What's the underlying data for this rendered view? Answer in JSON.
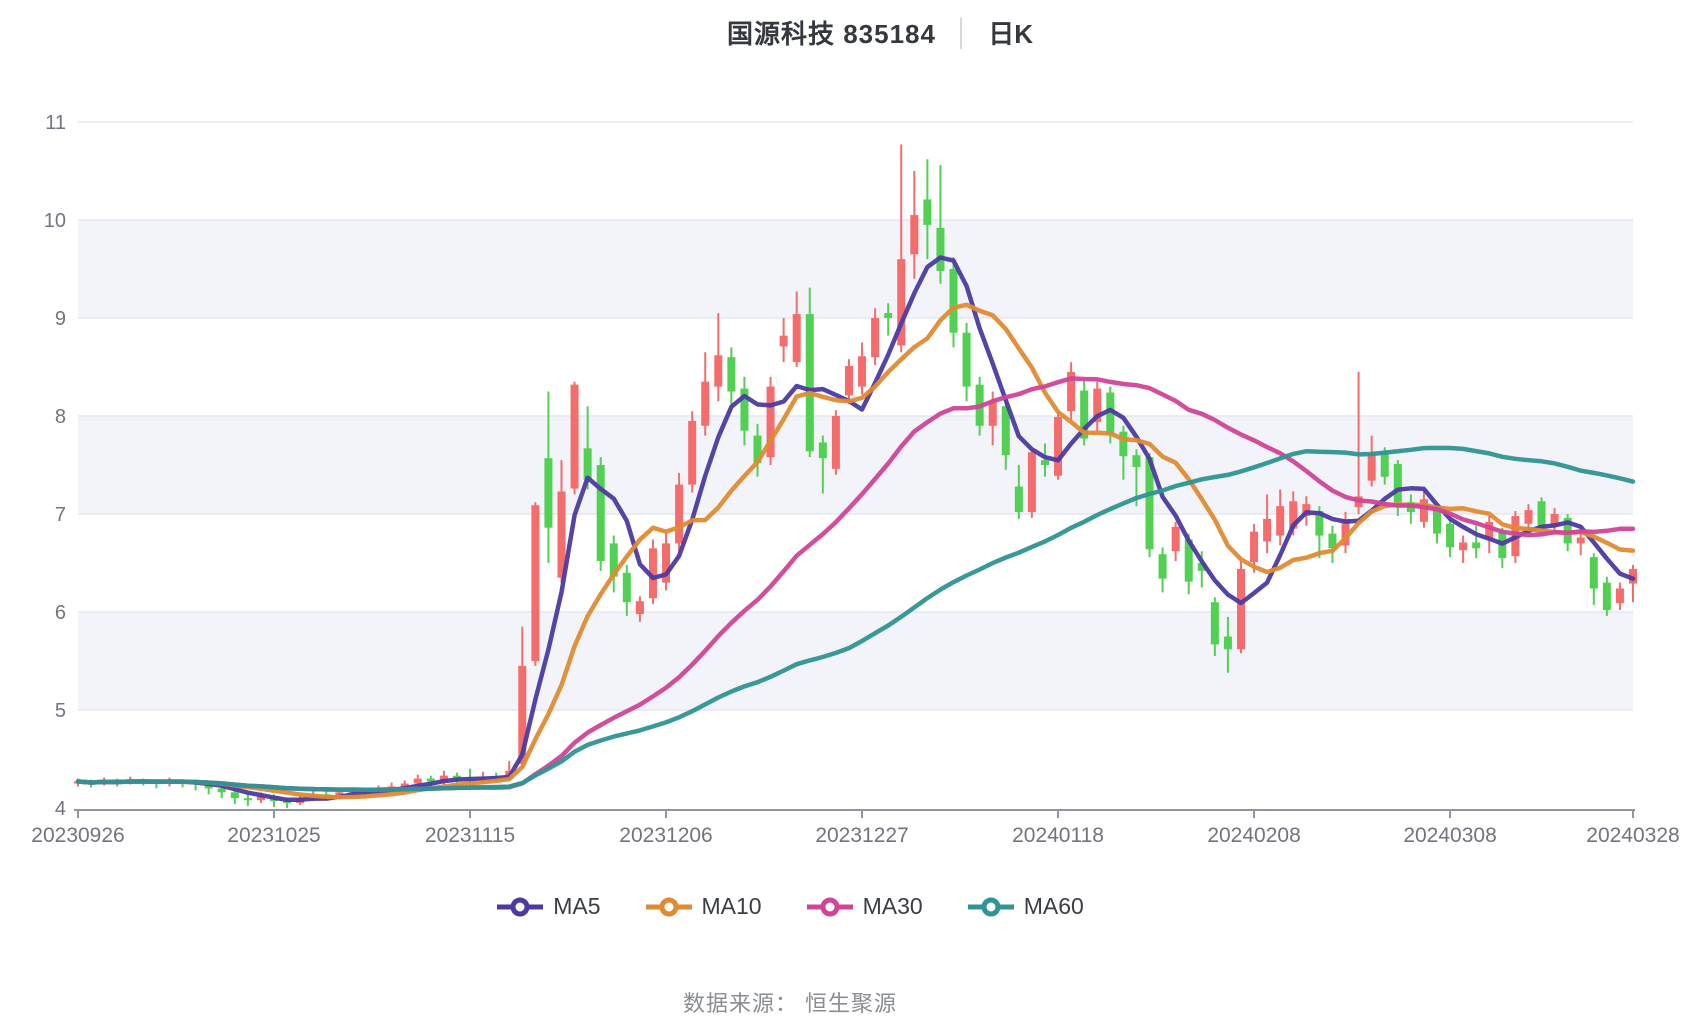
{
  "title": {
    "main": "国源科技 835184",
    "separator": "│",
    "sub": "日K"
  },
  "footer": {
    "text": "数据来源： 恒生聚源"
  },
  "chart_data": {
    "type": "candlestick",
    "title": "国源科技 835184 日K",
    "xlabel": "",
    "ylabel": "",
    "x_tick_labels": [
      "20230926",
      "20231025",
      "20231115",
      "20231206",
      "20231227",
      "20240118",
      "20240208",
      "20240308",
      "20240328"
    ],
    "x_tick_indices": [
      0,
      15,
      30,
      45,
      60,
      75,
      90,
      105,
      119
    ],
    "num_points": 120,
    "y_axis": {
      "min": 4,
      "max": 11,
      "ticks": [
        4,
        5,
        6,
        7,
        8,
        9,
        10,
        11
      ],
      "shaded_bands": [
        [
          5,
          6
        ],
        [
          7,
          8
        ],
        [
          9,
          10
        ]
      ]
    },
    "grid": true,
    "legend_position": "bottom",
    "up_color": "#f56c6c",
    "down_color": "#52d053",
    "band_color": "#f2f4fa",
    "gridline_color": "#e3e7f2",
    "axis_color": "#8f959e",
    "axis_label_color": "#71757e",
    "ohlc_order": [
      "open",
      "close",
      "low",
      "high"
    ],
    "ohlc": [
      [
        4.26,
        4.27,
        4.22,
        4.3
      ],
      [
        4.27,
        4.25,
        4.21,
        4.29
      ],
      [
        4.25,
        4.28,
        4.23,
        4.31
      ],
      [
        4.28,
        4.26,
        4.22,
        4.3
      ],
      [
        4.26,
        4.29,
        4.24,
        4.32
      ],
      [
        4.29,
        4.27,
        4.23,
        4.3
      ],
      [
        4.27,
        4.25,
        4.2,
        4.29
      ],
      [
        4.25,
        4.28,
        4.22,
        4.31
      ],
      [
        4.28,
        4.26,
        4.21,
        4.29
      ],
      [
        4.26,
        4.24,
        4.18,
        4.28
      ],
      [
        4.24,
        4.2,
        4.14,
        4.26
      ],
      [
        4.2,
        4.16,
        4.1,
        4.22
      ],
      [
        4.16,
        4.1,
        4.04,
        4.18
      ],
      [
        4.1,
        4.08,
        4.02,
        4.14
      ],
      [
        4.08,
        4.12,
        4.05,
        4.16
      ],
      [
        4.12,
        4.07,
        4.01,
        4.14
      ],
      [
        4.07,
        4.05,
        4.0,
        4.1
      ],
      [
        4.05,
        4.1,
        4.03,
        4.13
      ],
      [
        4.1,
        4.14,
        4.07,
        4.17
      ],
      [
        4.14,
        4.12,
        4.08,
        4.18
      ],
      [
        4.12,
        4.16,
        4.1,
        4.19
      ],
      [
        4.16,
        4.18,
        4.12,
        4.21
      ],
      [
        4.18,
        4.16,
        4.12,
        4.2
      ],
      [
        4.16,
        4.2,
        4.13,
        4.23
      ],
      [
        4.2,
        4.22,
        4.16,
        4.26
      ],
      [
        4.22,
        4.25,
        4.18,
        4.28
      ],
      [
        4.25,
        4.3,
        4.22,
        4.34
      ],
      [
        4.3,
        4.27,
        4.21,
        4.33
      ],
      [
        4.27,
        4.33,
        4.24,
        4.38
      ],
      [
        4.33,
        4.3,
        4.25,
        4.36
      ],
      [
        4.3,
        4.28,
        4.18,
        4.4
      ],
      [
        4.28,
        4.32,
        4.24,
        4.37
      ],
      [
        4.32,
        4.3,
        4.26,
        4.36
      ],
      [
        4.3,
        4.38,
        4.28,
        4.48
      ],
      [
        4.45,
        5.45,
        4.4,
        5.85
      ],
      [
        5.5,
        7.09,
        5.45,
        7.12
      ],
      [
        7.57,
        6.86,
        6.5,
        8.25
      ],
      [
        6.35,
        7.23,
        6.3,
        7.55
      ],
      [
        7.26,
        8.32,
        7.2,
        8.35
      ],
      [
        7.67,
        7.35,
        7.25,
        8.1
      ],
      [
        7.5,
        6.52,
        6.42,
        7.58
      ],
      [
        6.7,
        6.36,
        6.2,
        6.78
      ],
      [
        6.4,
        6.1,
        5.96,
        6.48
      ],
      [
        5.98,
        6.11,
        5.9,
        6.16
      ],
      [
        6.14,
        6.65,
        6.08,
        6.74
      ],
      [
        6.3,
        6.7,
        6.22,
        6.8
      ],
      [
        6.7,
        7.3,
        6.6,
        7.42
      ],
      [
        7.3,
        7.95,
        7.22,
        8.05
      ],
      [
        7.9,
        8.35,
        7.8,
        8.65
      ],
      [
        8.3,
        8.62,
        8.15,
        9.05
      ],
      [
        8.6,
        8.25,
        8.1,
        8.7
      ],
      [
        8.28,
        7.85,
        7.7,
        8.4
      ],
      [
        7.8,
        7.52,
        7.38,
        7.92
      ],
      [
        7.58,
        8.3,
        7.5,
        8.4
      ],
      [
        8.71,
        8.82,
        8.55,
        9.0
      ],
      [
        8.55,
        9.04,
        8.5,
        9.27
      ],
      [
        9.04,
        7.64,
        7.58,
        9.31
      ],
      [
        7.73,
        7.57,
        7.21,
        7.8
      ],
      [
        7.46,
        8.0,
        7.4,
        8.06
      ],
      [
        8.21,
        8.51,
        8.12,
        8.58
      ],
      [
        8.3,
        8.61,
        8.22,
        8.75
      ],
      [
        8.6,
        9.0,
        8.52,
        9.1
      ],
      [
        9.05,
        9.0,
        8.82,
        9.15
      ],
      [
        8.72,
        9.6,
        8.65,
        10.77
      ],
      [
        9.65,
        10.05,
        9.4,
        10.5
      ],
      [
        10.21,
        9.95,
        9.6,
        10.62
      ],
      [
        9.92,
        9.48,
        9.35,
        10.56
      ],
      [
        9.5,
        8.85,
        8.7,
        9.62
      ],
      [
        8.85,
        8.3,
        8.15,
        8.95
      ],
      [
        8.32,
        7.9,
        7.8,
        8.4
      ],
      [
        7.9,
        8.15,
        7.7,
        8.25
      ],
      [
        8.1,
        7.6,
        7.45,
        8.15
      ],
      [
        7.28,
        7.02,
        6.95,
        7.5
      ],
      [
        7.02,
        7.63,
        6.96,
        7.68
      ],
      [
        7.55,
        7.5,
        7.38,
        7.72
      ],
      [
        7.39,
        7.99,
        7.35,
        8.05
      ],
      [
        8.05,
        8.45,
        7.95,
        8.55
      ],
      [
        8.26,
        7.77,
        7.7,
        8.36
      ],
      [
        7.94,
        8.28,
        7.85,
        8.35
      ],
      [
        8.24,
        7.82,
        7.72,
        8.3
      ],
      [
        7.84,
        7.59,
        7.35,
        7.9
      ],
      [
        7.6,
        7.48,
        7.08,
        7.66
      ],
      [
        7.58,
        6.64,
        6.56,
        7.62
      ],
      [
        6.59,
        6.34,
        6.2,
        6.66
      ],
      [
        6.62,
        6.87,
        6.52,
        6.92
      ],
      [
        6.74,
        6.31,
        6.18,
        6.8
      ],
      [
        6.5,
        6.42,
        6.25,
        6.62
      ],
      [
        6.1,
        5.67,
        5.55,
        6.15
      ],
      [
        5.75,
        5.62,
        5.38,
        5.95
      ],
      [
        5.62,
        6.44,
        5.58,
        6.52
      ],
      [
        6.51,
        6.82,
        6.4,
        6.9
      ],
      [
        6.72,
        6.95,
        6.6,
        7.2
      ],
      [
        6.78,
        7.08,
        6.68,
        7.25
      ],
      [
        6.85,
        7.13,
        6.78,
        7.23
      ],
      [
        6.98,
        7.1,
        6.88,
        7.18
      ],
      [
        7.03,
        6.78,
        6.55,
        7.08
      ],
      [
        6.8,
        6.65,
        6.5,
        6.88
      ],
      [
        6.68,
        6.95,
        6.6,
        7.02
      ],
      [
        7.07,
        7.18,
        7.0,
        8.45
      ],
      [
        7.34,
        7.61,
        7.28,
        7.8
      ],
      [
        7.63,
        7.38,
        7.3,
        7.68
      ],
      [
        7.51,
        7.12,
        6.98,
        7.55
      ],
      [
        7.12,
        7.02,
        6.9,
        7.2
      ],
      [
        6.92,
        7.15,
        6.86,
        7.24
      ],
      [
        7.05,
        6.8,
        6.7,
        7.12
      ],
      [
        6.9,
        6.66,
        6.56,
        6.95
      ],
      [
        6.63,
        6.71,
        6.5,
        6.78
      ],
      [
        6.71,
        6.65,
        6.55,
        6.88
      ],
      [
        6.76,
        6.92,
        6.6,
        6.98
      ],
      [
        6.81,
        6.55,
        6.45,
        6.86
      ],
      [
        6.57,
        6.98,
        6.5,
        7.03
      ],
      [
        6.9,
        7.04,
        6.85,
        7.1
      ],
      [
        7.13,
        6.85,
        6.78,
        7.17
      ],
      [
        6.87,
        7.0,
        6.82,
        7.06
      ],
      [
        6.96,
        6.7,
        6.62,
        7.0
      ],
      [
        6.7,
        6.76,
        6.58,
        6.82
      ],
      [
        6.56,
        6.24,
        6.07,
        6.6
      ],
      [
        6.3,
        6.02,
        5.96,
        6.36
      ],
      [
        6.09,
        6.24,
        6.02,
        6.3
      ],
      [
        6.29,
        6.44,
        6.1,
        6.48
      ]
    ],
    "ma_series": [
      {
        "name": "MA5",
        "window": 5,
        "color": "#4c3aa3"
      },
      {
        "name": "MA10",
        "window": 10,
        "color": "#e08a31"
      },
      {
        "name": "MA30",
        "window": 30,
        "color": "#d04598"
      },
      {
        "name": "MA60",
        "window": 60,
        "color": "#2e9494"
      }
    ]
  }
}
